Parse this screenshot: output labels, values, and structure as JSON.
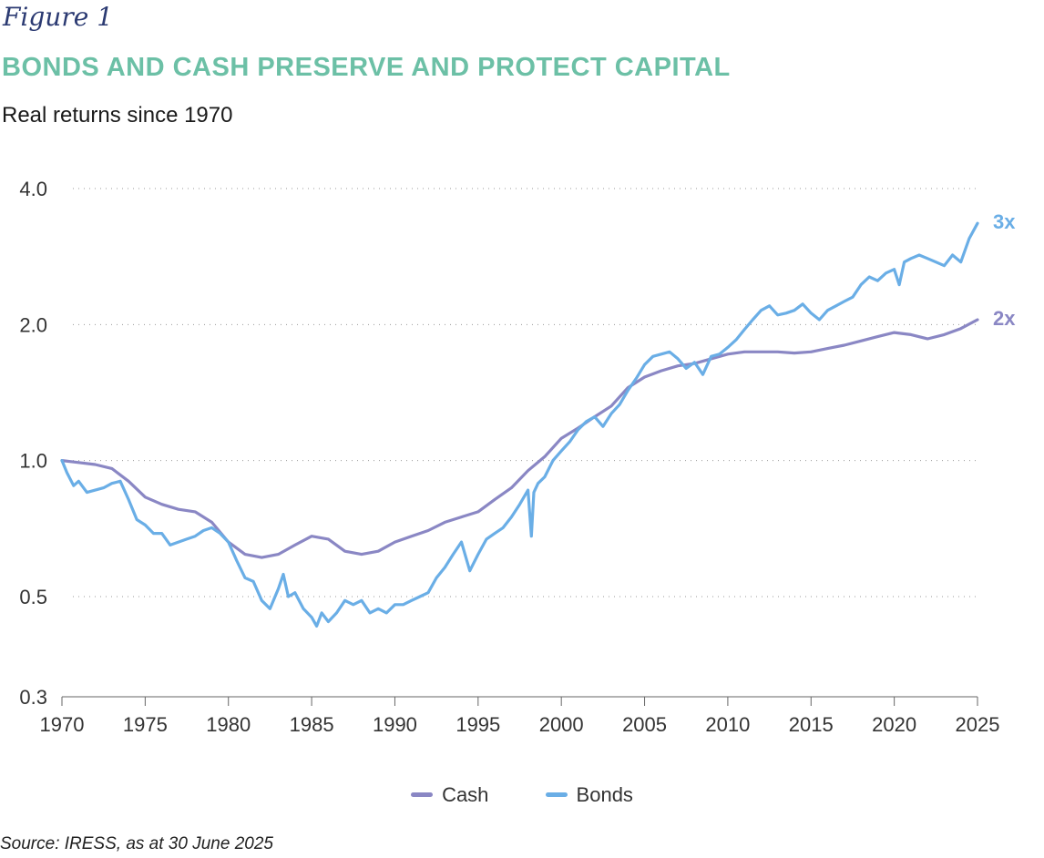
{
  "header": {
    "figure_label": "Figure 1",
    "title": "BONDS AND CASH PRESERVE AND PROTECT CAPITAL",
    "subtitle": "Real returns since 1970"
  },
  "footer": {
    "source": "Source: IRESS, as at 30 June 2025"
  },
  "colors": {
    "cash": "#8a87c4",
    "bonds": "#6aaee6",
    "title": "#6cc0a6",
    "figure": "#2b3a72"
  },
  "chart_data": {
    "type": "line",
    "title": "BONDS AND CASH PRESERVE AND PROTECT CAPITAL",
    "subtitle": "Real returns since 1970",
    "xlabel": "",
    "ylabel": "",
    "y_scale": "log",
    "xlim": [
      1970,
      2025
    ],
    "ylim": [
      0.3,
      4.0
    ],
    "grid": "horizontal dotted",
    "legend_position": "bottom-center",
    "x_ticks": [
      1970,
      1975,
      1980,
      1985,
      1990,
      1995,
      2000,
      2005,
      2010,
      2015,
      2020,
      2025
    ],
    "y_ticks": [
      {
        "value": 0.3,
        "label": "0.3"
      },
      {
        "value": 0.5,
        "label": "0.5"
      },
      {
        "value": 1.0,
        "label": "1.0"
      },
      {
        "value": 2.0,
        "label": "2.0"
      },
      {
        "value": 4.0,
        "label": "4.0"
      }
    ],
    "series": [
      {
        "name": "Cash",
        "end_label": "2x",
        "x": [
          1970,
          1971,
          1972,
          1973,
          1974,
          1975,
          1976,
          1977,
          1978,
          1979,
          1980,
          1981,
          1982,
          1983,
          1984,
          1985,
          1986,
          1987,
          1988,
          1989,
          1990,
          1991,
          1992,
          1993,
          1994,
          1995,
          1996,
          1997,
          1998,
          1999,
          2000,
          2001,
          2002,
          2003,
          2004,
          2005,
          2006,
          2007,
          2008,
          2009,
          2010,
          2011,
          2012,
          2013,
          2014,
          2015,
          2016,
          2017,
          2018,
          2019,
          2020,
          2021,
          2022,
          2023,
          2024,
          2025
        ],
        "values": [
          1.0,
          0.99,
          0.98,
          0.96,
          0.9,
          0.83,
          0.8,
          0.78,
          0.77,
          0.73,
          0.66,
          0.62,
          0.61,
          0.62,
          0.65,
          0.68,
          0.67,
          0.63,
          0.62,
          0.63,
          0.66,
          0.68,
          0.7,
          0.73,
          0.75,
          0.77,
          0.82,
          0.87,
          0.95,
          1.02,
          1.12,
          1.18,
          1.25,
          1.32,
          1.45,
          1.53,
          1.58,
          1.62,
          1.64,
          1.68,
          1.72,
          1.74,
          1.74,
          1.74,
          1.73,
          1.74,
          1.77,
          1.8,
          1.84,
          1.88,
          1.92,
          1.9,
          1.86,
          1.9,
          1.96,
          2.05
        ]
      },
      {
        "name": "Bonds",
        "end_label": "3x",
        "x": [
          1970,
          1970.3,
          1970.7,
          1971,
          1971.5,
          1972,
          1972.5,
          1973,
          1973.5,
          1974,
          1974.5,
          1975,
          1975.5,
          1976,
          1976.5,
          1977,
          1977.5,
          1978,
          1978.5,
          1979,
          1979.5,
          1980,
          1980.5,
          1981,
          1981.5,
          1982,
          1982.5,
          1983,
          1983.3,
          1983.6,
          1984,
          1984.5,
          1985,
          1985.3,
          1985.6,
          1986,
          1986.5,
          1987,
          1987.5,
          1988,
          1988.5,
          1989,
          1989.5,
          1990,
          1990.5,
          1991,
          1991.5,
          1992,
          1992.5,
          1993,
          1993.5,
          1994,
          1994.5,
          1995,
          1995.5,
          1996,
          1996.5,
          1997,
          1997.5,
          1998,
          1998.2,
          1998.35,
          1998.6,
          1999,
          1999.5,
          2000,
          2000.5,
          2001,
          2001.5,
          2002,
          2002.5,
          2003,
          2003.5,
          2004,
          2004.5,
          2005,
          2005.5,
          2006,
          2006.5,
          2007,
          2007.5,
          2008,
          2008.5,
          2009,
          2009.5,
          2010,
          2010.5,
          2011,
          2011.5,
          2012,
          2012.5,
          2013,
          2013.5,
          2014,
          2014.5,
          2015,
          2015.5,
          2016,
          2016.5,
          2017,
          2017.5,
          2018,
          2018.5,
          2019,
          2019.5,
          2020,
          2020.3,
          2020.6,
          2021,
          2021.5,
          2022,
          2022.5,
          2023,
          2023.5,
          2024,
          2024.5,
          2025
        ],
        "values": [
          1.0,
          0.94,
          0.88,
          0.9,
          0.85,
          0.86,
          0.87,
          0.89,
          0.9,
          0.82,
          0.74,
          0.72,
          0.69,
          0.69,
          0.65,
          0.66,
          0.67,
          0.68,
          0.7,
          0.71,
          0.69,
          0.66,
          0.6,
          0.55,
          0.54,
          0.49,
          0.47,
          0.52,
          0.56,
          0.5,
          0.51,
          0.47,
          0.45,
          0.43,
          0.46,
          0.44,
          0.46,
          0.49,
          0.48,
          0.49,
          0.46,
          0.47,
          0.46,
          0.48,
          0.48,
          0.49,
          0.5,
          0.51,
          0.55,
          0.58,
          0.62,
          0.66,
          0.57,
          0.62,
          0.67,
          0.69,
          0.71,
          0.75,
          0.8,
          0.86,
          0.68,
          0.85,
          0.89,
          0.92,
          1.0,
          1.05,
          1.1,
          1.17,
          1.22,
          1.25,
          1.19,
          1.27,
          1.33,
          1.43,
          1.52,
          1.63,
          1.7,
          1.72,
          1.74,
          1.68,
          1.6,
          1.65,
          1.55,
          1.7,
          1.72,
          1.78,
          1.85,
          1.95,
          2.05,
          2.15,
          2.2,
          2.1,
          2.12,
          2.15,
          2.22,
          2.12,
          2.05,
          2.15,
          2.2,
          2.25,
          2.3,
          2.45,
          2.55,
          2.5,
          2.6,
          2.65,
          2.45,
          2.75,
          2.8,
          2.85,
          2.8,
          2.75,
          2.7,
          2.85,
          2.75,
          3.1,
          3.35
        ]
      }
    ]
  },
  "legend": [
    {
      "label": "Cash",
      "color": "#8a87c4"
    },
    {
      "label": "Bonds",
      "color": "#6aaee6"
    }
  ]
}
